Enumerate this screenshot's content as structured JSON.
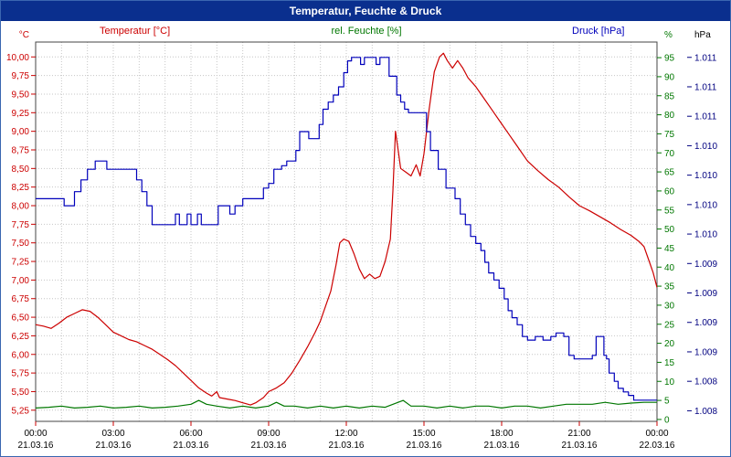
{
  "window": {
    "title": "Temperatur, Feuchte & Druck"
  },
  "colors": {
    "titlebar_bg": "#0a2f8e",
    "titlebar_text": "#ffffff",
    "temperature": "#cc0000",
    "humidity": "#007700",
    "pressure": "#0000bb",
    "hpa_text": "#000080",
    "grid": "#c6c6c6",
    "axis": "#444444",
    "tick_text": "#000000"
  },
  "chart_data": {
    "type": "line",
    "title": "Temperatur, Feuchte & Druck",
    "legend": {
      "temperature": "Temperatur [°C]",
      "humidity": "rel. Feuchte [%]",
      "pressure": "Druck [hPa]"
    },
    "x_axis": {
      "range_hours": [
        0,
        24
      ],
      "gridline_every_hours": 1,
      "tick_hours": [
        0,
        3,
        6,
        9,
        12,
        15,
        18,
        21,
        24
      ],
      "tick_times": [
        "00:00",
        "03:00",
        "06:00",
        "09:00",
        "12:00",
        "15:00",
        "18:00",
        "21:00",
        "00:00"
      ],
      "tick_dates": [
        "21.03.16",
        "21.03.16",
        "21.03.16",
        "21.03.16",
        "21.03.16",
        "21.03.16",
        "21.03.16",
        "21.03.16",
        "22.03.16"
      ]
    },
    "y_axes": {
      "celsius": {
        "unit": "°C",
        "range": [
          5.1,
          10.2
        ],
        "tick_values": [
          10.0,
          9.75,
          9.5,
          9.25,
          9.0,
          8.75,
          8.5,
          8.25,
          8.0,
          7.75,
          7.5,
          7.25,
          7.0,
          6.75,
          6.5,
          6.25,
          6.0,
          5.75,
          5.5,
          5.25
        ],
        "tick_labels": [
          "10,00",
          "9,75",
          "9,50",
          "9,25",
          "9,00",
          "8,75",
          "8,50",
          "8,25",
          "8,00",
          "7,75",
          "7,50",
          "7,25",
          "7,00",
          "6,75",
          "6,50",
          "6,25",
          "6,00",
          "5,75",
          "5,50",
          "5,25"
        ]
      },
      "percent": {
        "unit": "%",
        "range": [
          -0.5,
          99.1
        ],
        "tick_values": [
          95,
          90,
          85,
          80,
          75,
          70,
          65,
          60,
          55,
          50,
          45,
          40,
          35,
          30,
          25,
          20,
          15,
          10,
          5,
          0
        ],
        "tick_labels": [
          "95",
          "90",
          "85",
          "80",
          "75",
          "70",
          "65",
          "60",
          "55",
          "50",
          "45",
          "40",
          "35",
          "30",
          "25",
          "20",
          "15",
          "10",
          "5",
          "0"
        ]
      },
      "hpa": {
        "unit": "hPa",
        "range": [
          1.00791,
          1.01113
        ],
        "tick_values": [
          1.011,
          1.01075,
          1.0105,
          1.01025,
          1.01,
          1.00975,
          1.0095,
          1.00925,
          1.009,
          1.00875,
          1.0085,
          1.00825,
          1.008
        ],
        "tick_labels": [
          "1.011",
          "1.011",
          "1.011",
          "1.010",
          "1.010",
          "1.010",
          "1.010",
          "1.009",
          "1.009",
          "1.009",
          "1.009",
          "1.008",
          "1.008"
        ]
      }
    },
    "series": [
      {
        "name": "rel. Feuchte [%]",
        "axis": "percent",
        "color": "#007700",
        "interpolation": "linear",
        "points": [
          [
            0,
            3
          ],
          [
            0.5,
            3.2
          ],
          [
            1,
            3.5
          ],
          [
            1.5,
            3
          ],
          [
            2,
            3.2
          ],
          [
            2.5,
            3.5
          ],
          [
            3,
            3
          ],
          [
            3.5,
            3.2
          ],
          [
            4,
            3.5
          ],
          [
            4.5,
            3
          ],
          [
            5,
            3.2
          ],
          [
            5.5,
            3.5
          ],
          [
            6,
            4
          ],
          [
            6.3,
            5
          ],
          [
            6.6,
            4
          ],
          [
            7,
            3.5
          ],
          [
            7.5,
            3
          ],
          [
            8,
            3.5
          ],
          [
            8.5,
            3
          ],
          [
            9,
            3.5
          ],
          [
            9.3,
            4.5
          ],
          [
            9.6,
            3.5
          ],
          [
            10,
            3.5
          ],
          [
            10.5,
            3
          ],
          [
            11,
            3.5
          ],
          [
            11.5,
            3
          ],
          [
            12,
            3.5
          ],
          [
            12.5,
            3
          ],
          [
            13,
            3.5
          ],
          [
            13.5,
            3.2
          ],
          [
            14,
            4.5
          ],
          [
            14.2,
            5
          ],
          [
            14.5,
            3.5
          ],
          [
            15,
            3.5
          ],
          [
            15.5,
            3
          ],
          [
            16,
            3.5
          ],
          [
            16.5,
            3
          ],
          [
            17,
            3.5
          ],
          [
            17.5,
            3.5
          ],
          [
            18,
            3
          ],
          [
            18.5,
            3.5
          ],
          [
            19,
            3.5
          ],
          [
            19.5,
            3
          ],
          [
            20,
            3.5
          ],
          [
            20.5,
            4
          ],
          [
            21,
            4
          ],
          [
            21.5,
            4
          ],
          [
            22,
            4.5
          ],
          [
            22.5,
            4
          ],
          [
            23,
            4.3
          ],
          [
            23.5,
            4.5
          ],
          [
            24,
            4.5
          ]
        ]
      },
      {
        "name": "Temperatur [°C]",
        "axis": "celsius",
        "color": "#cc0000",
        "interpolation": "linear",
        "points": [
          [
            0,
            6.4
          ],
          [
            0.3,
            6.38
          ],
          [
            0.6,
            6.35
          ],
          [
            0.9,
            6.42
          ],
          [
            1.2,
            6.5
          ],
          [
            1.5,
            6.55
          ],
          [
            1.8,
            6.6
          ],
          [
            2.1,
            6.58
          ],
          [
            2.4,
            6.5
          ],
          [
            2.7,
            6.4
          ],
          [
            3.0,
            6.3
          ],
          [
            3.3,
            6.25
          ],
          [
            3.6,
            6.2
          ],
          [
            3.9,
            6.17
          ],
          [
            4.2,
            6.12
          ],
          [
            4.5,
            6.07
          ],
          [
            4.8,
            6.0
          ],
          [
            5.1,
            5.93
          ],
          [
            5.4,
            5.85
          ],
          [
            5.7,
            5.75
          ],
          [
            6.0,
            5.65
          ],
          [
            6.3,
            5.55
          ],
          [
            6.6,
            5.48
          ],
          [
            6.8,
            5.44
          ],
          [
            7.0,
            5.5
          ],
          [
            7.1,
            5.42
          ],
          [
            7.4,
            5.4
          ],
          [
            7.7,
            5.38
          ],
          [
            8.0,
            5.35
          ],
          [
            8.3,
            5.32
          ],
          [
            8.5,
            5.35
          ],
          [
            8.8,
            5.42
          ],
          [
            9.0,
            5.5
          ],
          [
            9.3,
            5.55
          ],
          [
            9.6,
            5.62
          ],
          [
            9.9,
            5.75
          ],
          [
            10.2,
            5.92
          ],
          [
            10.5,
            6.1
          ],
          [
            10.8,
            6.3
          ],
          [
            11.0,
            6.45
          ],
          [
            11.2,
            6.65
          ],
          [
            11.4,
            6.85
          ],
          [
            11.6,
            7.2
          ],
          [
            11.75,
            7.5
          ],
          [
            11.9,
            7.55
          ],
          [
            12.1,
            7.52
          ],
          [
            12.3,
            7.35
          ],
          [
            12.5,
            7.15
          ],
          [
            12.7,
            7.02
          ],
          [
            12.9,
            7.08
          ],
          [
            13.1,
            7.02
          ],
          [
            13.3,
            7.05
          ],
          [
            13.5,
            7.25
          ],
          [
            13.7,
            7.55
          ],
          [
            13.8,
            8.2
          ],
          [
            13.9,
            9.0
          ],
          [
            14.0,
            8.75
          ],
          [
            14.1,
            8.5
          ],
          [
            14.3,
            8.45
          ],
          [
            14.5,
            8.4
          ],
          [
            14.7,
            8.55
          ],
          [
            14.85,
            8.4
          ],
          [
            15.0,
            8.7
          ],
          [
            15.2,
            9.3
          ],
          [
            15.4,
            9.8
          ],
          [
            15.6,
            10.0
          ],
          [
            15.75,
            10.05
          ],
          [
            15.9,
            9.95
          ],
          [
            16.1,
            9.85
          ],
          [
            16.3,
            9.95
          ],
          [
            16.5,
            9.85
          ],
          [
            16.7,
            9.72
          ],
          [
            17.0,
            9.6
          ],
          [
            17.3,
            9.45
          ],
          [
            17.6,
            9.3
          ],
          [
            18.0,
            9.1
          ],
          [
            18.3,
            8.95
          ],
          [
            18.6,
            8.8
          ],
          [
            19.0,
            8.6
          ],
          [
            19.4,
            8.47
          ],
          [
            19.8,
            8.35
          ],
          [
            20.2,
            8.25
          ],
          [
            20.6,
            8.12
          ],
          [
            21.0,
            8.0
          ],
          [
            21.4,
            7.93
          ],
          [
            21.8,
            7.85
          ],
          [
            22.2,
            7.77
          ],
          [
            22.6,
            7.68
          ],
          [
            23.0,
            7.6
          ],
          [
            23.3,
            7.52
          ],
          [
            23.5,
            7.45
          ],
          [
            23.7,
            7.25
          ],
          [
            23.85,
            7.1
          ],
          [
            24.0,
            6.9
          ]
        ]
      },
      {
        "name": "Druck [hPa]",
        "axis": "hpa",
        "color": "#0000bb",
        "interpolation": "step",
        "points": [
          [
            0,
            1.0098
          ],
          [
            0.9,
            1.0098
          ],
          [
            1.1,
            1.00974
          ],
          [
            1.35,
            1.00974
          ],
          [
            1.5,
            1.00986
          ],
          [
            1.75,
            1.00996
          ],
          [
            2.0,
            1.01005
          ],
          [
            2.3,
            1.01012
          ],
          [
            2.6,
            1.01012
          ],
          [
            2.75,
            1.01005
          ],
          [
            3.6,
            1.01005
          ],
          [
            3.9,
            1.00996
          ],
          [
            4.1,
            1.00986
          ],
          [
            4.3,
            1.00974
          ],
          [
            4.5,
            1.00958
          ],
          [
            5.25,
            1.00958
          ],
          [
            5.4,
            1.00967
          ],
          [
            5.55,
            1.00958
          ],
          [
            5.85,
            1.00967
          ],
          [
            6.0,
            1.00958
          ],
          [
            6.25,
            1.00967
          ],
          [
            6.4,
            1.00958
          ],
          [
            6.9,
            1.00958
          ],
          [
            7.05,
            1.00974
          ],
          [
            7.4,
            1.00974
          ],
          [
            7.5,
            1.00967
          ],
          [
            7.7,
            1.00974
          ],
          [
            8.0,
            1.0098
          ],
          [
            8.6,
            1.0098
          ],
          [
            8.8,
            1.00989
          ],
          [
            9.0,
            1.00993
          ],
          [
            9.2,
            1.01005
          ],
          [
            9.5,
            1.01008
          ],
          [
            9.7,
            1.01012
          ],
          [
            9.9,
            1.01012
          ],
          [
            10.05,
            1.01021
          ],
          [
            10.2,
            1.01037
          ],
          [
            10.4,
            1.01037
          ],
          [
            10.55,
            1.01031
          ],
          [
            10.8,
            1.01031
          ],
          [
            10.95,
            1.01043
          ],
          [
            11.1,
            1.01056
          ],
          [
            11.3,
            1.01062
          ],
          [
            11.5,
            1.01068
          ],
          [
            11.7,
            1.01075
          ],
          [
            11.9,
            1.01087
          ],
          [
            12.05,
            1.01097
          ],
          [
            12.2,
            1.011
          ],
          [
            12.4,
            1.011
          ],
          [
            12.55,
            1.01094
          ],
          [
            12.7,
            1.011
          ],
          [
            13.0,
            1.011
          ],
          [
            13.15,
            1.01094
          ],
          [
            13.3,
            1.011
          ],
          [
            13.5,
            1.011
          ],
          [
            13.65,
            1.01084
          ],
          [
            13.8,
            1.01084
          ],
          [
            13.95,
            1.01068
          ],
          [
            14.1,
            1.01062
          ],
          [
            14.25,
            1.01056
          ],
          [
            14.4,
            1.01053
          ],
          [
            15.0,
            1.01053
          ],
          [
            15.1,
            1.01037
          ],
          [
            15.25,
            1.01021
          ],
          [
            15.4,
            1.01021
          ],
          [
            15.55,
            1.01005
          ],
          [
            15.7,
            1.01005
          ],
          [
            15.85,
            1.00989
          ],
          [
            16.0,
            1.00989
          ],
          [
            16.2,
            1.0098
          ],
          [
            16.4,
            1.00967
          ],
          [
            16.6,
            1.00958
          ],
          [
            16.8,
            1.00948
          ],
          [
            17.0,
            1.00942
          ],
          [
            17.2,
            1.00936
          ],
          [
            17.35,
            1.00926
          ],
          [
            17.5,
            1.00917
          ],
          [
            17.7,
            1.00911
          ],
          [
            17.9,
            1.00904
          ],
          [
            18.1,
            1.00895
          ],
          [
            18.25,
            1.00885
          ],
          [
            18.4,
            1.00879
          ],
          [
            18.6,
            1.00873
          ],
          [
            18.8,
            1.00863
          ],
          [
            19.0,
            1.0086
          ],
          [
            19.3,
            1.00863
          ],
          [
            19.6,
            1.0086
          ],
          [
            19.9,
            1.00863
          ],
          [
            20.1,
            1.00866
          ],
          [
            20.4,
            1.00863
          ],
          [
            20.6,
            1.00847
          ],
          [
            20.8,
            1.00844
          ],
          [
            21.3,
            1.00844
          ],
          [
            21.5,
            1.00847
          ],
          [
            21.65,
            1.00863
          ],
          [
            21.85,
            1.00863
          ],
          [
            21.95,
            1.00847
          ],
          [
            22.05,
            1.00844
          ],
          [
            22.15,
            1.00832
          ],
          [
            22.35,
            1.00825
          ],
          [
            22.5,
            1.00819
          ],
          [
            22.7,
            1.00816
          ],
          [
            22.9,
            1.00813
          ],
          [
            23.1,
            1.00809
          ],
          [
            24,
            1.00809
          ]
        ]
      }
    ],
    "grid": true,
    "legend_position": "top"
  }
}
